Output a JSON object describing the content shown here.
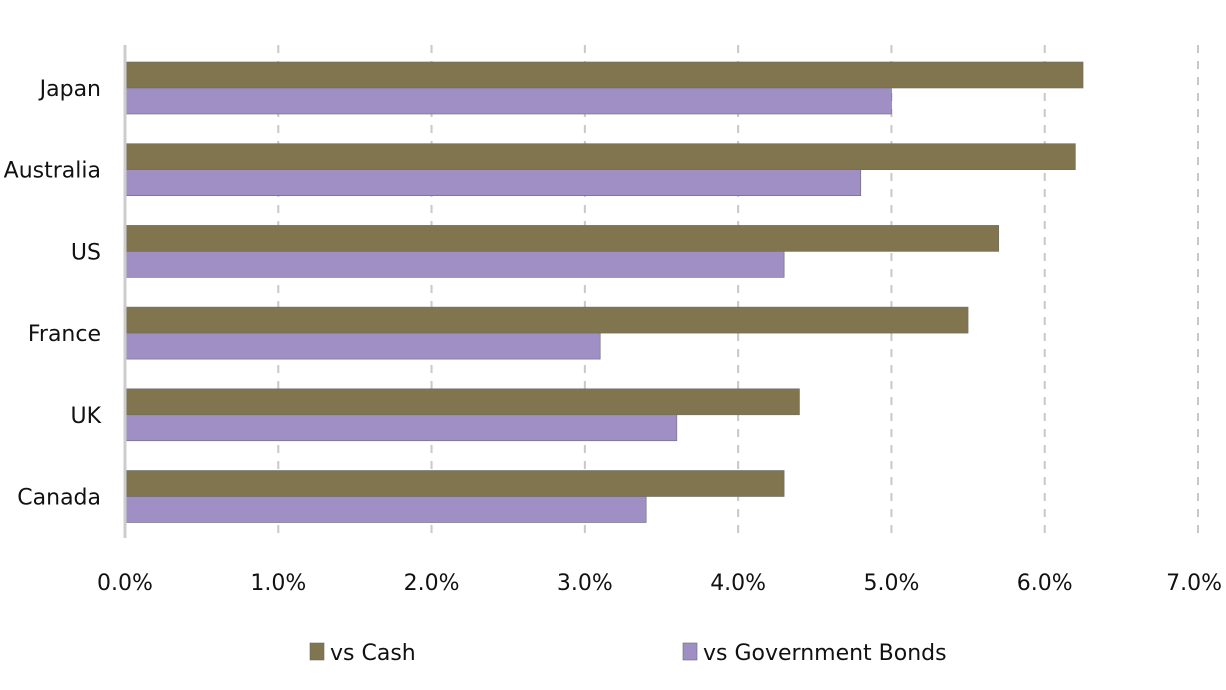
{
  "chart_data": {
    "type": "bar",
    "orientation": "horizontal",
    "categories": [
      "Japan",
      "Australia",
      "US",
      "France",
      "UK",
      "Canada"
    ],
    "series": [
      {
        "name": "vs Cash",
        "values": [
          6.25,
          6.2,
          5.7,
          5.5,
          4.4,
          4.3
        ],
        "color": "#81754f"
      },
      {
        "name": "vs Government Bonds",
        "values": [
          5.0,
          4.8,
          4.3,
          3.1,
          3.6,
          3.4
        ],
        "color": "#9f8fc5"
      }
    ],
    "xlim": [
      0,
      7
    ],
    "x_ticks": [
      "0.0%",
      "1.0%",
      "2.0%",
      "3.0%",
      "4.0%",
      "5.0%",
      "6.0%",
      "7.0%"
    ],
    "grid": "vertical dashed",
    "legend_position": "bottom",
    "colors": {
      "grid": "#c8c8c8",
      "axis": "#cccccc",
      "bar_border": "#6b6b6b"
    }
  }
}
